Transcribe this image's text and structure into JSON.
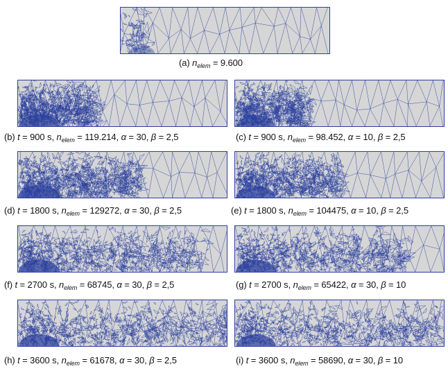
{
  "figure": {
    "panels": [
      {
        "label": "(a)",
        "n_elem": "9.600"
      },
      {
        "label": "(b)",
        "t": "900",
        "n_elem": "119.214",
        "alpha": "30",
        "beta": "2,5"
      },
      {
        "label": "(c)",
        "t": "900",
        "n_elem": "98.452",
        "alpha": "10",
        "beta": "2,5"
      },
      {
        "label": "(d)",
        "t": "1800",
        "n_elem": "129272",
        "alpha": "30",
        "beta": "2,5"
      },
      {
        "label": "(e)",
        "t": "1800",
        "n_elem": "104475",
        "alpha": "10",
        "beta": "2,5"
      },
      {
        "label": "(f)",
        "t": "2700",
        "n_elem": "68745",
        "alpha": "30",
        "beta": "2,5"
      },
      {
        "label": "(g)",
        "t": "2700",
        "n_elem": "65422",
        "alpha": "30",
        "beta": "10"
      },
      {
        "label": "(h)",
        "t": "3600",
        "n_elem": "61678",
        "alpha": "30",
        "beta": "2,5"
      },
      {
        "label": "(i)",
        "t": "3600",
        "n_elem": "58690",
        "alpha": "30",
        "beta": "10"
      }
    ],
    "symbols": {
      "t": "t",
      "eq": " = ",
      "unit": " s, ",
      "n": "n",
      "elem": "elem",
      "alpha": "α",
      "beta": "β",
      "comma": ", "
    },
    "colors": {
      "mesh_line": "#2a3f9e",
      "mesh_fill": "#d6d6d6",
      "text": "#111111"
    }
  }
}
